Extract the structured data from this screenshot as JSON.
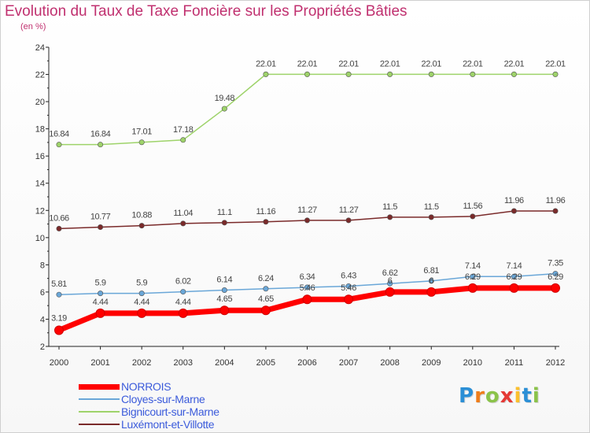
{
  "chart_data": {
    "type": "line",
    "title": "Evolution du Taux de Taxe Foncière sur les Propriétés Bâties",
    "unit_label": "(en %)",
    "x": [
      "2000",
      "2001",
      "2002",
      "2003",
      "2004",
      "2005",
      "2006",
      "2007",
      "2008",
      "2009",
      "2010",
      "2011",
      "2012"
    ],
    "ylim": [
      2,
      24
    ],
    "yticks": [
      2,
      4,
      6,
      8,
      10,
      12,
      14,
      16,
      18,
      20,
      22,
      24
    ],
    "grid": false,
    "legend_position": "bottom-left",
    "series": [
      {
        "name": "NORROIS",
        "color": "#ff0000",
        "values": [
          3.19,
          4.44,
          4.44,
          4.44,
          4.65,
          4.65,
          5.46,
          5.46,
          6.0,
          6.0,
          6.29,
          6.29,
          6.29
        ],
        "labels": [
          "3.19",
          "4.44",
          "4.44",
          "4.44",
          "4.65",
          "4.65",
          "5.46",
          "5.46",
          "6",
          "6",
          "6.29",
          "6.29",
          "6.29"
        ]
      },
      {
        "name": "Cloyes-sur-Marne",
        "color": "#6aa7d8",
        "values": [
          5.81,
          5.9,
          5.9,
          6.02,
          6.14,
          6.24,
          6.34,
          6.43,
          6.62,
          6.81,
          7.14,
          7.14,
          7.35
        ],
        "labels": [
          "5.81",
          "5.9",
          "5.9",
          "6.02",
          "6.14",
          "6.24",
          "6.34",
          "6.43",
          "6.62",
          "6.81",
          "7.14",
          "7.14",
          "7.35"
        ]
      },
      {
        "name": "Bignicourt-sur-Marne",
        "color": "#9ed36a",
        "values": [
          16.84,
          16.84,
          17.01,
          17.18,
          19.48,
          22.01,
          22.01,
          22.01,
          22.01,
          22.01,
          22.01,
          22.01,
          22.01
        ],
        "labels": [
          "16.84",
          "16.84",
          "17.01",
          "17.18",
          "19.48",
          "22.01",
          "22.01",
          "22.01",
          "22.01",
          "22.01",
          "22.01",
          "22.01",
          "22.01"
        ]
      },
      {
        "name": "Luxémont-et-Villotte",
        "color": "#7a2a2a",
        "values": [
          10.66,
          10.77,
          10.88,
          11.04,
          11.1,
          11.16,
          11.27,
          11.27,
          11.5,
          11.5,
          11.56,
          11.96,
          11.96
        ],
        "labels": [
          "10.66",
          "10.77",
          "10.88",
          "11.04",
          "11.1",
          "11.16",
          "11.27",
          "11.27",
          "11.5",
          "11.5",
          "11.56",
          "11.96",
          "11.96"
        ]
      }
    ]
  },
  "logo": {
    "text": "Proxiti",
    "colors": [
      "#2b8fd6",
      "#ef7d1a",
      "#8bc34a",
      "#e53935",
      "#fbc02d",
      "#2b8fd6",
      "#8bc34a"
    ]
  }
}
